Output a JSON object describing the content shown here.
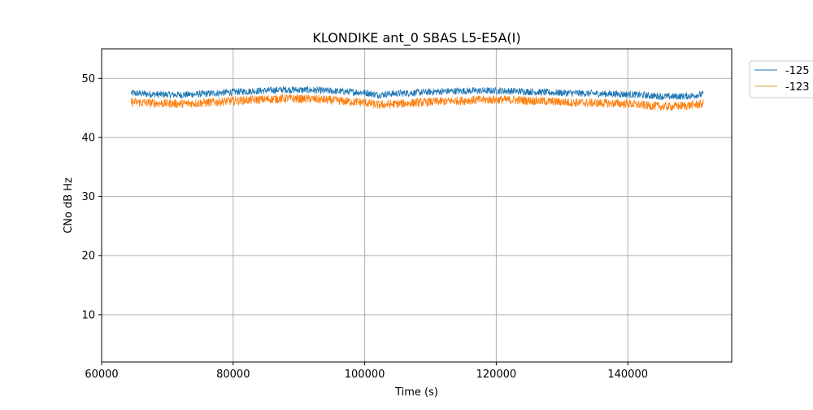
{
  "chart_data": {
    "type": "line",
    "title": "KLONDIKE ant_0 SBAS L5-E5A(I)",
    "xlabel": "Time (s)",
    "ylabel": "CNo dB Hz",
    "xlim": [
      60000,
      155800
    ],
    "ylim": [
      2,
      55
    ],
    "xticks": [
      60000,
      80000,
      100000,
      120000,
      140000
    ],
    "xtick_labels": [
      "60000",
      "80000",
      "100000",
      "120000",
      "140000"
    ],
    "yticks": [
      10,
      20,
      30,
      40,
      50
    ],
    "ytick_labels": [
      "10",
      "20",
      "30",
      "40",
      "50"
    ],
    "grid": true,
    "legend_position": "outside-top-right",
    "series": [
      {
        "name": "-125",
        "color": "#1f77b4",
        "x": [
          64500,
          68000,
          72000,
          76000,
          80000,
          84000,
          88000,
          92000,
          96000,
          100000,
          102000,
          104000,
          108000,
          112000,
          116000,
          120000,
          124000,
          128000,
          132000,
          136000,
          140000,
          143000,
          146000,
          149000,
          151500
        ],
        "y": [
          47.5,
          47.3,
          47.2,
          47.4,
          47.7,
          47.9,
          48.1,
          48.0,
          47.8,
          47.6,
          47.2,
          47.4,
          47.6,
          47.8,
          47.9,
          47.9,
          47.8,
          47.6,
          47.5,
          47.4,
          47.3,
          47.1,
          46.9,
          47.0,
          47.3
        ],
        "noise": 0.6
      },
      {
        "name": "-123",
        "color": "#ff7f0e",
        "legend_color": "#d4a537",
        "x": [
          64500,
          68000,
          72000,
          76000,
          80000,
          84000,
          88000,
          92000,
          96000,
          100000,
          102000,
          104000,
          108000,
          112000,
          116000,
          120000,
          124000,
          128000,
          132000,
          136000,
          140000,
          143000,
          146000,
          149000,
          151500
        ],
        "y": [
          46.0,
          45.8,
          45.7,
          45.9,
          46.2,
          46.4,
          46.6,
          46.5,
          46.2,
          45.9,
          45.5,
          45.6,
          45.9,
          46.1,
          46.3,
          46.4,
          46.3,
          46.1,
          45.9,
          45.8,
          45.7,
          45.4,
          45.2,
          45.4,
          45.7
        ],
        "noise": 0.75
      }
    ]
  }
}
